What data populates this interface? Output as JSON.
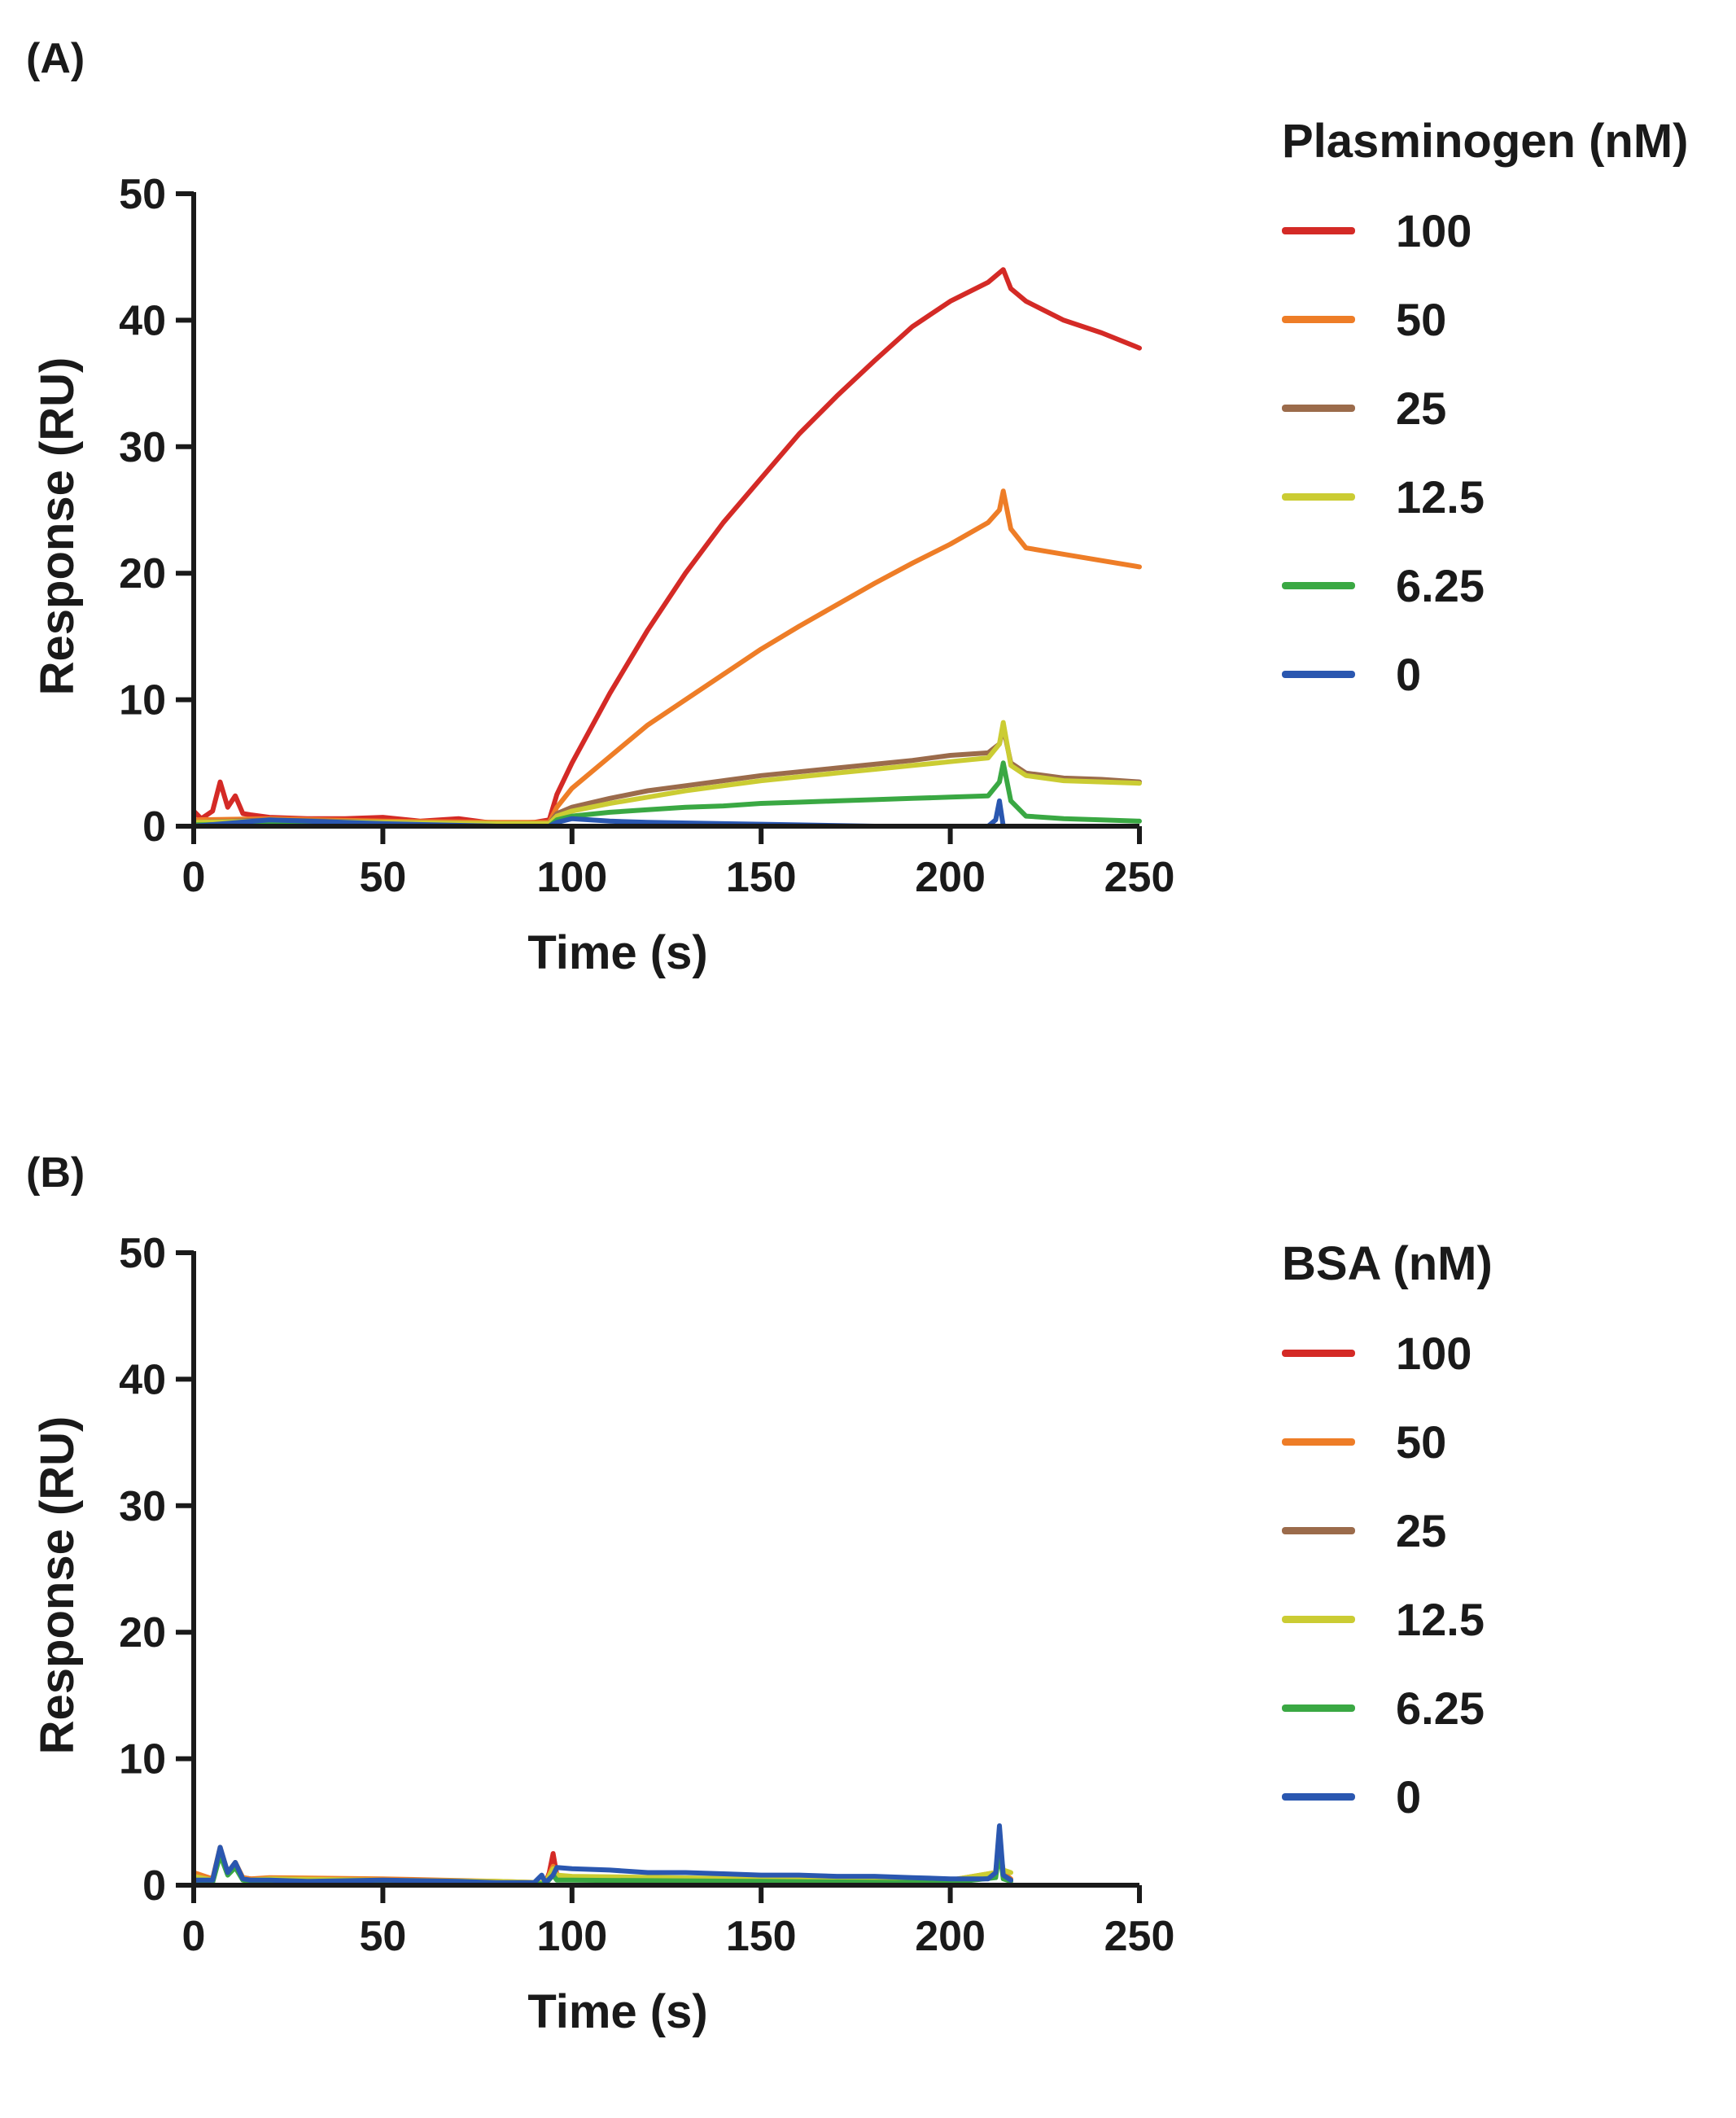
{
  "chart_data": [
    {
      "type": "line",
      "panel_label": "(A)",
      "title": "",
      "xlabel": "Time (s)",
      "ylabel": "Response (RU)",
      "xlim": [
        0,
        250
      ],
      "ylim": [
        0,
        50
      ],
      "xticks": [
        "0",
        "50",
        "100",
        "150",
        "200",
        "250"
      ],
      "yticks": [
        "0",
        "10",
        "20",
        "30",
        "40",
        "50"
      ],
      "grid": false,
      "legend_position": "right",
      "legend_title": "Plasminogen (nM)",
      "series": [
        {
          "name": "100",
          "color": "#d42a26",
          "x": [
            0,
            2,
            5,
            7,
            9,
            11,
            13,
            15,
            20,
            30,
            40,
            50,
            60,
            70,
            80,
            90,
            94,
            96,
            100,
            110,
            120,
            130,
            140,
            150,
            160,
            170,
            180,
            190,
            200,
            210,
            214,
            216,
            220,
            230,
            240,
            250
          ],
          "y": [
            1.2,
            0.6,
            1.2,
            3.5,
            1.5,
            2.4,
            1.0,
            0.9,
            0.7,
            0.6,
            0.6,
            0.7,
            0.4,
            0.6,
            0.2,
            0.3,
            0.5,
            2.5,
            5.0,
            10.5,
            15.5,
            20.0,
            24.0,
            27.5,
            31.0,
            34.0,
            36.8,
            39.5,
            41.5,
            43.0,
            44.0,
            42.5,
            41.5,
            40.0,
            39.0,
            37.8
          ]
        },
        {
          "name": "50",
          "color": "#ee7d27",
          "x": [
            0,
            20,
            50,
            80,
            94,
            96,
            100,
            110,
            120,
            130,
            140,
            150,
            160,
            170,
            180,
            190,
            200,
            210,
            213,
            214,
            216,
            220,
            230,
            240,
            250
          ],
          "y": [
            0.5,
            0.6,
            0.4,
            0.3,
            0.3,
            1.5,
            3.0,
            5.5,
            8.0,
            10.0,
            12.0,
            14.0,
            15.8,
            17.5,
            19.2,
            20.8,
            22.3,
            24.0,
            25.0,
            26.5,
            23.5,
            22.0,
            21.5,
            21.0,
            20.5
          ]
        },
        {
          "name": "25",
          "color": "#9b6b4b",
          "x": [
            0,
            20,
            50,
            80,
            94,
            96,
            100,
            110,
            120,
            130,
            140,
            150,
            160,
            170,
            180,
            190,
            200,
            210,
            213,
            214,
            216,
            220,
            230,
            240,
            250
          ],
          "y": [
            0.3,
            0.5,
            0.3,
            0.2,
            0.2,
            1.0,
            1.5,
            2.2,
            2.8,
            3.2,
            3.6,
            4.0,
            4.3,
            4.6,
            4.9,
            5.2,
            5.6,
            5.8,
            6.5,
            7.8,
            5.0,
            4.2,
            3.8,
            3.7,
            3.5
          ]
        },
        {
          "name": "12.5",
          "color": "#cbcc33",
          "x": [
            0,
            20,
            50,
            80,
            94,
            96,
            100,
            110,
            120,
            130,
            140,
            150,
            160,
            170,
            180,
            190,
            200,
            210,
            213,
            214,
            216,
            220,
            230,
            240,
            250
          ],
          "y": [
            0.3,
            0.4,
            0.3,
            0.2,
            0.2,
            0.8,
            1.2,
            1.8,
            2.3,
            2.8,
            3.2,
            3.6,
            3.9,
            4.2,
            4.5,
            4.8,
            5.1,
            5.4,
            6.5,
            8.2,
            4.8,
            4.0,
            3.6,
            3.5,
            3.4
          ]
        },
        {
          "name": "6.25",
          "color": "#3aa843",
          "x": [
            0,
            20,
            50,
            80,
            94,
            96,
            100,
            110,
            120,
            130,
            140,
            150,
            160,
            170,
            180,
            190,
            200,
            210,
            213,
            214,
            216,
            220,
            230,
            240,
            250
          ],
          "y": [
            0.1,
            0.2,
            0.1,
            0.0,
            0.0,
            0.5,
            0.8,
            1.1,
            1.3,
            1.5,
            1.6,
            1.8,
            1.9,
            2.0,
            2.1,
            2.2,
            2.3,
            2.4,
            3.5,
            5.0,
            2.0,
            0.8,
            0.6,
            0.5,
            0.4
          ]
        },
        {
          "name": "0",
          "color": "#2a57b0",
          "x": [
            0,
            20,
            50,
            80,
            94,
            96,
            100,
            110,
            120,
            140,
            160,
            180,
            190,
            200,
            210,
            212,
            213,
            214
          ],
          "y": [
            0.0,
            0.5,
            0.2,
            0.0,
            0.0,
            0.3,
            0.6,
            0.4,
            0.3,
            0.2,
            0.1,
            0.0,
            0.0,
            0.0,
            0.0,
            0.5,
            2.0,
            0.0
          ]
        }
      ]
    },
    {
      "type": "line",
      "panel_label": "(B)",
      "title": "",
      "xlabel": "Time (s)",
      "ylabel": "Response (RU)",
      "xlim": [
        0,
        250
      ],
      "ylim": [
        0,
        50
      ],
      "xticks": [
        "0",
        "50",
        "100",
        "150",
        "200",
        "250"
      ],
      "yticks": [
        "0",
        "10",
        "20",
        "30",
        "40",
        "50"
      ],
      "grid": false,
      "legend_position": "right",
      "legend_title": "BSA (nM)",
      "series": [
        {
          "name": "100",
          "color": "#d42a26",
          "x": [
            0,
            5,
            7,
            9,
            11,
            13,
            15,
            20,
            50,
            80,
            93,
            94,
            95,
            96,
            100,
            150,
            200,
            212,
            213,
            214,
            216
          ],
          "y": [
            0.8,
            0.5,
            2.5,
            1.0,
            1.6,
            0.6,
            0.5,
            0.4,
            0.3,
            0.2,
            0.2,
            1.0,
            2.5,
            0.8,
            0.5,
            0.3,
            0.3,
            1.0,
            3.5,
            0.8,
            0.4
          ]
        },
        {
          "name": "50",
          "color": "#ee7d27",
          "x": [
            0,
            5,
            7,
            9,
            11,
            13,
            15,
            20,
            50,
            80,
            93,
            95,
            96,
            100,
            150,
            200,
            212,
            213,
            214,
            216
          ],
          "y": [
            1.0,
            0.5,
            3.0,
            1.0,
            1.8,
            0.6,
            0.5,
            0.6,
            0.5,
            0.3,
            0.2,
            1.5,
            0.8,
            0.6,
            0.5,
            0.4,
            1.0,
            3.5,
            1.0,
            0.5
          ]
        },
        {
          "name": "25",
          "color": "#9b6b4b",
          "x": [
            0,
            5,
            7,
            9,
            11,
            13,
            15,
            20,
            50,
            80,
            93,
            95,
            96,
            100,
            150,
            200,
            212,
            213,
            214,
            216
          ],
          "y": [
            0.6,
            0.4,
            2.6,
            0.9,
            1.5,
            0.5,
            0.4,
            0.4,
            0.3,
            0.2,
            0.2,
            1.2,
            0.7,
            0.6,
            0.4,
            0.3,
            0.9,
            3.2,
            0.8,
            0.4
          ]
        },
        {
          "name": "12.5",
          "color": "#cbcc33",
          "x": [
            0,
            5,
            7,
            9,
            11,
            13,
            15,
            20,
            50,
            80,
            93,
            95,
            96,
            100,
            150,
            200,
            212,
            213,
            214,
            216
          ],
          "y": [
            0.7,
            0.4,
            2.8,
            1.0,
            1.7,
            0.5,
            0.4,
            0.5,
            0.4,
            0.3,
            0.2,
            1.3,
            0.8,
            0.7,
            0.5,
            0.4,
            1.0,
            3.0,
            1.2,
            1.0
          ]
        },
        {
          "name": "6.25",
          "color": "#3aa843",
          "x": [
            0,
            5,
            7,
            9,
            11,
            13,
            15,
            20,
            50,
            80,
            93,
            95,
            96,
            100,
            150,
            200,
            212,
            213,
            214,
            216
          ],
          "y": [
            0.3,
            0.2,
            2.4,
            0.8,
            1.4,
            0.4,
            0.3,
            0.2,
            0.2,
            0.1,
            0.1,
            0.8,
            0.4,
            0.4,
            0.3,
            0.2,
            0.6,
            2.8,
            0.5,
            0.3
          ]
        },
        {
          "name": "0",
          "color": "#2a57b0",
          "x": [
            0,
            5,
            7,
            9,
            11,
            13,
            15,
            20,
            30,
            50,
            70,
            80,
            90,
            92,
            93,
            95,
            96,
            100,
            110,
            120,
            130,
            140,
            150,
            160,
            170,
            180,
            190,
            200,
            210,
            212,
            213,
            214,
            216
          ],
          "y": [
            0.4,
            0.4,
            3.0,
            1.0,
            1.8,
            0.5,
            0.4,
            0.4,
            0.3,
            0.4,
            0.3,
            0.2,
            0.2,
            0.8,
            0.2,
            0.8,
            1.4,
            1.3,
            1.2,
            1.0,
            1.0,
            0.9,
            0.8,
            0.8,
            0.7,
            0.7,
            0.6,
            0.5,
            0.5,
            1.0,
            4.7,
            0.8,
            0.4
          ]
        }
      ]
    }
  ]
}
